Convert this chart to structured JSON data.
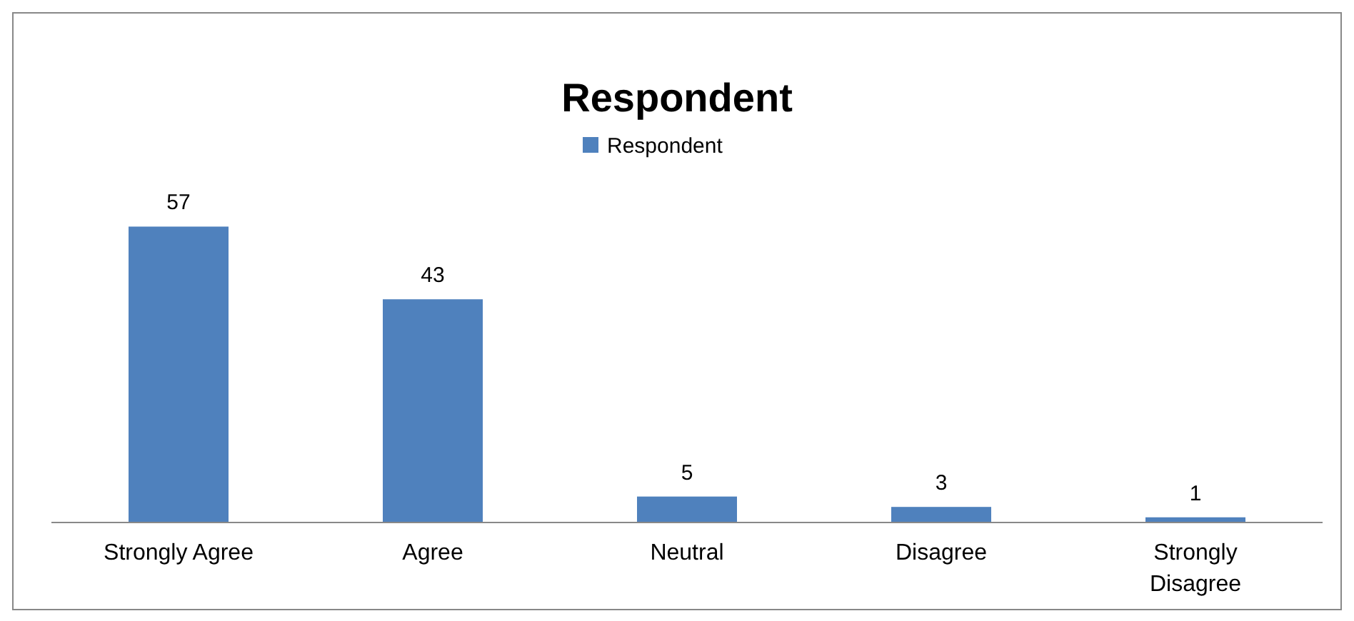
{
  "chart_data": {
    "type": "bar",
    "title": "Respondent",
    "categories": [
      "Strongly Agree",
      "Agree",
      "Neutral",
      "Disagree",
      "Strongly Disagree"
    ],
    "series": [
      {
        "name": "Respondent",
        "color": "#4f81bd",
        "values": [
          57,
          43,
          5,
          3,
          1
        ]
      }
    ],
    "data_labels": true,
    "legend": "top"
  }
}
